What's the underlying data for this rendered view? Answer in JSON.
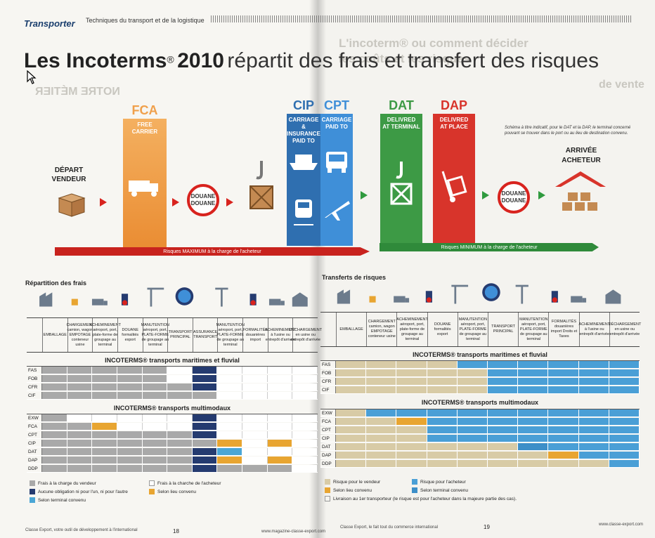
{
  "header": {
    "brand": "Transporter",
    "subtitle": "Techniques du transport et de la logistique"
  },
  "title": {
    "main": "Les Incoterms",
    "year": "2010",
    "rest": "répartit des frais et transfert des risques",
    "reg": "®"
  },
  "ghost_text": {
    "left_heading": "NOTRE MÉTIER",
    "right_line1": "L'incoterm® ou comment décider",
    "right_line2": "les coûts et les risques",
    "right_line3": "de vente"
  },
  "infographic": {
    "depart": "DÉPART\nVENDEUR",
    "arrivee": "ARRIVÉE\nACHETEUR",
    "fca": {
      "code": "FCA",
      "desc": "FREE\nCARRIER"
    },
    "cip": {
      "code": "CIP",
      "desc": "CARRIAGE &\nINSURANCE\nPAID TO"
    },
    "cpt": {
      "code": "CPT",
      "desc": "CARRIAGE\nPAID TO"
    },
    "dat": {
      "code": "DAT",
      "desc": "DELIVRED\nAT TERMINAL"
    },
    "dap": {
      "code": "DAP",
      "desc": "DELIVRED\nAT PLACE"
    },
    "douane": "DOUANE\nDOUANE",
    "band_left": "Risques MAXIMUM à la charge de l'acheteur",
    "band_right": "Risques MINIMUM à la charge de l'acheteur",
    "note": "Schéma à titre indicatif, pour le DAT et la DAP, le terminal concerné pouvant se trouver dans le port ou au lieu de destination convenu.",
    "colors": {
      "fca": "#f0a04b",
      "cip": "#2f6fb0",
      "cpt": "#3f8fd8",
      "dat": "#3d9a45",
      "dap": "#d8342b",
      "red": "#d8231e",
      "green": "#2f9a3e"
    }
  },
  "frais": {
    "section_title": "Répartition des frais",
    "columns": [
      "EMBALLAGE",
      "CHARGEMENT camion, wagon EMPOTAGE conteneur usine",
      "ACHEMINEMENT aéroport, port, plate-forme de groupage au terminal",
      "DOUANE formalités export",
      "MANUTENTION aéroport, port, PLATE-FORME de groupage au terminal",
      "TRANSPORT PRINCIPAL",
      "ASSURANCE TRANSPORT",
      "MANUTENTION aéroport, port, PLATE-FORME de groupage au terminal",
      "FORMALITÉS douanières import",
      "ACHEMINEMENT à l'usine ou entrepôt d'arrivée",
      "DÉCHARGEMENT en usine ou entrepôt d'arrivée"
    ],
    "maritime_title": "INCOTERMS® transports maritimes et fluvial",
    "multimodal_title": "INCOTERMS® transports multimodaux",
    "maritime_rows": [
      {
        "label": "FAS",
        "cells": [
          "g",
          "g",
          "g",
          "g",
          "g",
          "w",
          "n",
          "w",
          "w",
          "w",
          "w"
        ]
      },
      {
        "label": "FOB",
        "cells": [
          "g",
          "g",
          "g",
          "g",
          "g",
          "w",
          "n",
          "w",
          "w",
          "w",
          "w"
        ]
      },
      {
        "label": "CFR",
        "cells": [
          "g",
          "g",
          "g",
          "g",
          "g",
          "g",
          "n",
          "w",
          "w",
          "w",
          "w"
        ]
      },
      {
        "label": "CIF",
        "cells": [
          "g",
          "g",
          "g",
          "g",
          "g",
          "g",
          "g",
          "w",
          "w",
          "w",
          "w"
        ]
      }
    ],
    "multimodal_rows": [
      {
        "label": "EXW",
        "cells": [
          "g",
          "w",
          "w",
          "w",
          "w",
          "w",
          "n",
          "w",
          "w",
          "w",
          "w"
        ]
      },
      {
        "label": "FCA",
        "cells": [
          "g",
          "g",
          "o",
          "w",
          "w",
          "w",
          "n",
          "w",
          "w",
          "w",
          "w"
        ]
      },
      {
        "label": "CPT",
        "cells": [
          "g",
          "g",
          "g",
          "g",
          "g",
          "g",
          "n",
          "w",
          "w",
          "w",
          "w"
        ]
      },
      {
        "label": "CIP",
        "cells": [
          "g",
          "g",
          "g",
          "g",
          "g",
          "g",
          "g",
          "o",
          "w",
          "o",
          "w"
        ]
      },
      {
        "label": "DAT",
        "cells": [
          "g",
          "g",
          "g",
          "g",
          "g",
          "g",
          "n",
          "b",
          "w",
          "w",
          "w"
        ]
      },
      {
        "label": "DAP",
        "cells": [
          "g",
          "g",
          "g",
          "g",
          "g",
          "g",
          "n",
          "o",
          "w",
          "o",
          "w"
        ]
      },
      {
        "label": "DDP",
        "cells": [
          "g",
          "g",
          "g",
          "g",
          "g",
          "g",
          "n",
          "g",
          "g",
          "g",
          "w"
        ]
      }
    ],
    "legend": {
      "vendeur": "Frais à la charge du vendeur",
      "acheteur": "Frais à la charche de l'acheteur",
      "aucune": "Aucune obligation ni pour l'un, ni pour l'autre",
      "lieu": "Selon lieu convenu",
      "terminal": "Selon terminal convenu"
    },
    "colors": {
      "g": "#a9a9a9",
      "w": "#ffffff",
      "n": "#253b70",
      "o": "#e8a531",
      "b": "#4aa6d6"
    }
  },
  "risques": {
    "section_title": "Transferts de risques",
    "columns": [
      "EMBALLAGE",
      "CHARGEMENT camion, wagon EMPOTAGE conteneur usine",
      "ACHEMINEMENT aéroport, port, plate-forme de groupage au terminal",
      "DOUANE formalités export",
      "MANUTENTION aéroport, port, PLATE-FORME de groupage au terminal",
      "TRANSPORT PRINCIPAL",
      "MANUTENTION aéroport, port, PLATE-FORME de groupage au terminal",
      "FORMALITÉS douanières import Droits et Taxes",
      "ACHEMINEMENT à l'usine ou entrepôt d'arrivée",
      "DÉCHARGEMENT en usine ou entrepôt d'arrivée"
    ],
    "maritime_title": "INCOTERMS® transports maritimes et fluvial",
    "multimodal_title": "INCOTERMS® transports multimodaux",
    "maritime_rows": [
      {
        "label": "FAS",
        "cells": [
          "t",
          "t",
          "t",
          "t",
          "b",
          "b",
          "b",
          "b",
          "b",
          "b"
        ]
      },
      {
        "label": "FOB",
        "cells": [
          "t",
          "t",
          "t",
          "t",
          "t",
          "b",
          "b",
          "b",
          "b",
          "b"
        ]
      },
      {
        "label": "CFR",
        "cells": [
          "t",
          "t",
          "t",
          "t",
          "t",
          "b",
          "b",
          "b",
          "b",
          "b"
        ]
      },
      {
        "label": "CIF",
        "cells": [
          "t",
          "t",
          "t",
          "t",
          "t",
          "b",
          "b",
          "b",
          "b",
          "b"
        ]
      }
    ],
    "multimodal_rows": [
      {
        "label": "EXW",
        "cells": [
          "t",
          "b",
          "b",
          "b",
          "b",
          "b",
          "b",
          "b",
          "b",
          "b"
        ]
      },
      {
        "label": "FCA",
        "cells": [
          "t",
          "t",
          "o",
          "b",
          "b",
          "b",
          "b",
          "b",
          "b",
          "b"
        ]
      },
      {
        "label": "CPT",
        "cells": [
          "t",
          "t",
          "t",
          "b",
          "b",
          "b",
          "b",
          "b",
          "b",
          "b"
        ]
      },
      {
        "label": "CIP",
        "cells": [
          "t",
          "t",
          "t",
          "b",
          "b",
          "b",
          "b",
          "b",
          "b",
          "b"
        ]
      },
      {
        "label": "DAT",
        "cells": [
          "t",
          "t",
          "t",
          "t",
          "t",
          "t",
          "s",
          "b",
          "b",
          "b"
        ]
      },
      {
        "label": "DAP",
        "cells": [
          "t",
          "t",
          "t",
          "t",
          "t",
          "t",
          "t",
          "o",
          "b",
          "b"
        ]
      },
      {
        "label": "DDP",
        "cells": [
          "t",
          "t",
          "t",
          "t",
          "t",
          "t",
          "t",
          "t",
          "t",
          "b"
        ]
      }
    ],
    "legend": {
      "vendeur": "Risque pour le vendeur",
      "acheteur": "Risque pour l'acheteur",
      "lieu": "Selon lieu convenu",
      "terminal": "Selon terminal convenu",
      "livraison": "Livraison au 1er transporteur (le risque est pour l'acheteur dans la majeure partie des cas)."
    },
    "colors": {
      "t": "#d8cba6",
      "b": "#4a9fd6",
      "o": "#e8a531",
      "s": "#3d8fc8"
    }
  },
  "footer": {
    "left_text": "Classe Export, votre outil de développement à l'international",
    "left_page": "18",
    "left_url": "www.magazine-classe-export.com",
    "right_text": "Classe Export, le fait tout du commerce international",
    "right_page": "19",
    "right_url": "www.classe-export.com"
  }
}
